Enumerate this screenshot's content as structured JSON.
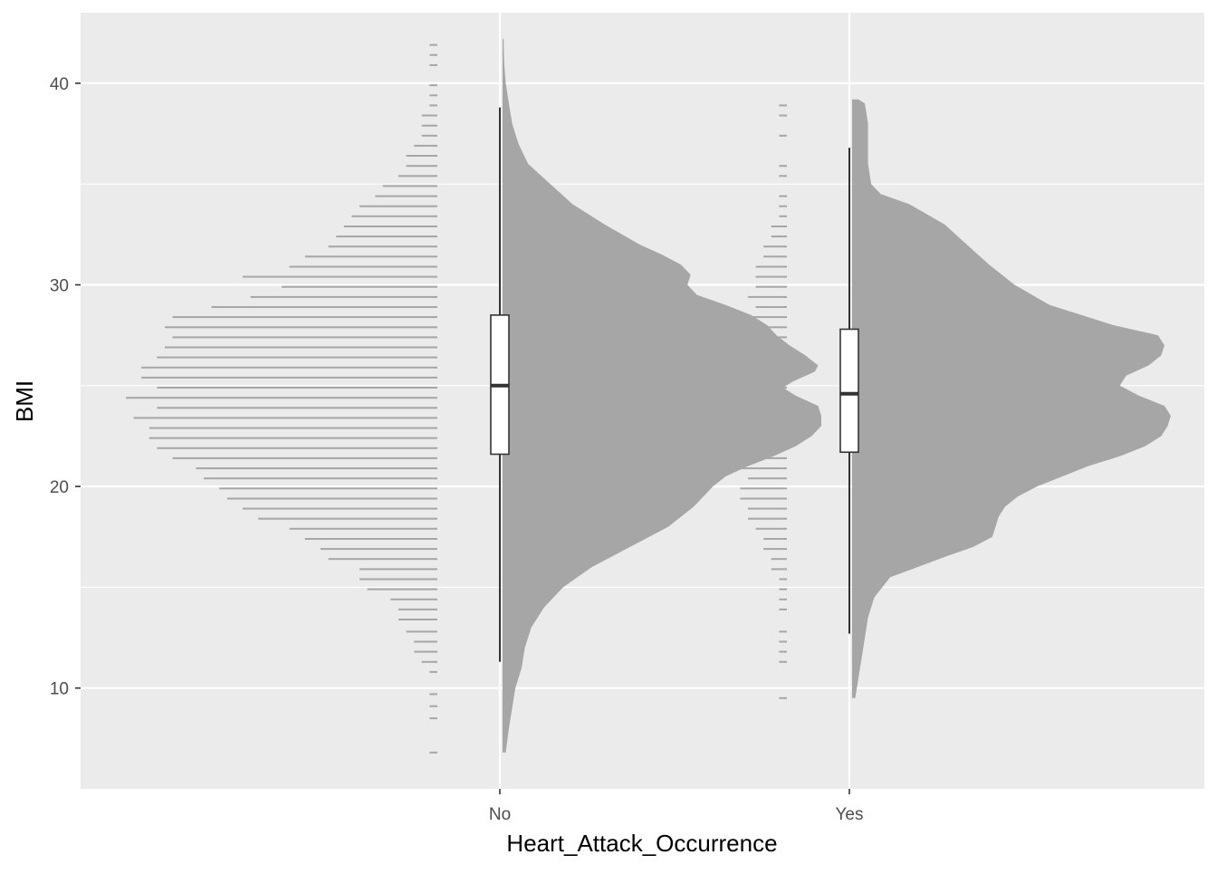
{
  "chart_data": {
    "type": "raincloud",
    "title": "",
    "xlabel": "Heart_Attack_Occurrence",
    "ylabel": "BMI",
    "categories": [
      "No",
      "Yes"
    ],
    "ylim": [
      5,
      43.5
    ],
    "yticks": [
      10,
      20,
      30,
      40
    ],
    "grid": true,
    "colors": {
      "panel": "#ebebeb",
      "grid": "#ffffff",
      "cloud": "#a6a6a6",
      "rain": "#a6a6a6",
      "box_fill": "#ffffff",
      "box_line": "#333333",
      "tick_text": "#4d4d4d",
      "axis_title": "#000000"
    },
    "series": [
      {
        "name": "No",
        "boxplot": {
          "lower_whisker": 11.3,
          "q1": 21.6,
          "median": 25.0,
          "q3": 28.5,
          "upper_whisker": 38.8
        },
        "density": [
          [
            6.8,
            0.01
          ],
          [
            8.0,
            0.02
          ],
          [
            9.0,
            0.03
          ],
          [
            10.0,
            0.04
          ],
          [
            11.0,
            0.06
          ],
          [
            12.0,
            0.07
          ],
          [
            13.0,
            0.09
          ],
          [
            14.0,
            0.13
          ],
          [
            15.0,
            0.19
          ],
          [
            16.0,
            0.28
          ],
          [
            17.0,
            0.4
          ],
          [
            18.0,
            0.52
          ],
          [
            19.0,
            0.6
          ],
          [
            19.5,
            0.63
          ],
          [
            20.0,
            0.66
          ],
          [
            20.5,
            0.7
          ],
          [
            21.0,
            0.77
          ],
          [
            21.5,
            0.85
          ],
          [
            22.0,
            0.92
          ],
          [
            22.5,
            0.97
          ],
          [
            23.0,
            1.0
          ],
          [
            23.5,
            1.0
          ],
          [
            24.0,
            0.99
          ],
          [
            24.5,
            0.92
          ],
          [
            24.9,
            0.88
          ],
          [
            25.2,
            0.91
          ],
          [
            25.7,
            0.98
          ],
          [
            26.0,
            0.99
          ],
          [
            26.5,
            0.95
          ],
          [
            27.0,
            0.9
          ],
          [
            27.5,
            0.86
          ],
          [
            28.0,
            0.83
          ],
          [
            28.5,
            0.78
          ],
          [
            29.0,
            0.7
          ],
          [
            29.5,
            0.61
          ],
          [
            30.0,
            0.58
          ],
          [
            30.5,
            0.59
          ],
          [
            31.0,
            0.56
          ],
          [
            31.5,
            0.5
          ],
          [
            32.0,
            0.43
          ],
          [
            33.0,
            0.32
          ],
          [
            34.0,
            0.22
          ],
          [
            35.0,
            0.15
          ],
          [
            36.0,
            0.08
          ],
          [
            37.0,
            0.05
          ],
          [
            38.0,
            0.03
          ],
          [
            39.0,
            0.02
          ],
          [
            40.0,
            0.01
          ],
          [
            41.0,
            0.005
          ],
          [
            42.2,
            0.003
          ]
        ],
        "dots": [
          [
            6.8,
            1
          ],
          [
            8.5,
            1
          ],
          [
            9.1,
            1
          ],
          [
            9.7,
            1
          ],
          [
            10.8,
            1
          ],
          [
            11.3,
            2
          ],
          [
            11.8,
            3
          ],
          [
            12.3,
            3
          ],
          [
            12.8,
            4
          ],
          [
            13.4,
            5
          ],
          [
            13.9,
            5
          ],
          [
            14.4,
            6
          ],
          [
            14.9,
            9
          ],
          [
            15.4,
            10
          ],
          [
            15.9,
            10
          ],
          [
            16.4,
            14
          ],
          [
            16.9,
            15
          ],
          [
            17.4,
            17
          ],
          [
            17.9,
            19
          ],
          [
            18.4,
            23
          ],
          [
            18.9,
            25
          ],
          [
            19.4,
            27
          ],
          [
            19.9,
            28
          ],
          [
            20.4,
            30
          ],
          [
            20.9,
            31
          ],
          [
            21.4,
            34
          ],
          [
            21.9,
            36
          ],
          [
            22.4,
            37
          ],
          [
            22.9,
            37
          ],
          [
            23.4,
            39
          ],
          [
            23.9,
            36
          ],
          [
            24.4,
            40
          ],
          [
            24.9,
            36
          ],
          [
            25.4,
            38
          ],
          [
            25.9,
            38
          ],
          [
            26.4,
            36
          ],
          [
            26.9,
            35
          ],
          [
            27.4,
            34
          ],
          [
            27.9,
            35
          ],
          [
            28.4,
            34
          ],
          [
            28.9,
            29
          ],
          [
            29.4,
            24
          ],
          [
            29.9,
            20
          ],
          [
            30.4,
            25
          ],
          [
            30.9,
            19
          ],
          [
            31.4,
            17
          ],
          [
            31.9,
            14
          ],
          [
            32.4,
            13
          ],
          [
            32.9,
            12
          ],
          [
            33.4,
            11
          ],
          [
            33.9,
            10
          ],
          [
            34.4,
            8
          ],
          [
            34.9,
            7
          ],
          [
            35.4,
            5
          ],
          [
            35.9,
            4
          ],
          [
            36.4,
            4
          ],
          [
            36.9,
            3
          ],
          [
            37.4,
            2
          ],
          [
            37.9,
            2
          ],
          [
            38.4,
            2
          ],
          [
            38.9,
            1
          ],
          [
            39.4,
            1
          ],
          [
            39.9,
            1
          ],
          [
            40.9,
            1
          ],
          [
            41.4,
            1
          ],
          [
            41.9,
            1
          ]
        ]
      },
      {
        "name": "Yes",
        "boxplot": {
          "lower_whisker": 12.7,
          "q1": 21.7,
          "median": 24.6,
          "q3": 27.8,
          "upper_whisker": 36.8
        },
        "density": [
          [
            9.5,
            0.01
          ],
          [
            10.5,
            0.02
          ],
          [
            11.5,
            0.03
          ],
          [
            12.5,
            0.04
          ],
          [
            13.5,
            0.05
          ],
          [
            14.5,
            0.07
          ],
          [
            15.5,
            0.12
          ],
          [
            16.5,
            0.29
          ],
          [
            17.0,
            0.38
          ],
          [
            17.5,
            0.44
          ],
          [
            18.0,
            0.45
          ],
          [
            18.5,
            0.46
          ],
          [
            19.0,
            0.48
          ],
          [
            19.5,
            0.52
          ],
          [
            20.0,
            0.58
          ],
          [
            20.5,
            0.66
          ],
          [
            21.0,
            0.74
          ],
          [
            21.5,
            0.84
          ],
          [
            22.0,
            0.92
          ],
          [
            22.5,
            0.97
          ],
          [
            23.0,
            0.99
          ],
          [
            23.5,
            1.0
          ],
          [
            24.0,
            0.98
          ],
          [
            24.5,
            0.9
          ],
          [
            25.0,
            0.84
          ],
          [
            25.5,
            0.86
          ],
          [
            26.0,
            0.93
          ],
          [
            26.5,
            0.97
          ],
          [
            27.0,
            0.98
          ],
          [
            27.5,
            0.96
          ],
          [
            28.0,
            0.82
          ],
          [
            29.0,
            0.62
          ],
          [
            30.0,
            0.51
          ],
          [
            31.0,
            0.43
          ],
          [
            32.0,
            0.36
          ],
          [
            33.0,
            0.29
          ],
          [
            34.0,
            0.18
          ],
          [
            34.5,
            0.09
          ],
          [
            35.0,
            0.06
          ],
          [
            36.0,
            0.05
          ],
          [
            37.0,
            0.05
          ],
          [
            38.0,
            0.05
          ],
          [
            39.0,
            0.04
          ],
          [
            39.2,
            0.02
          ]
        ],
        "dots": [
          [
            9.5,
            1
          ],
          [
            11.3,
            1
          ],
          [
            11.8,
            1
          ],
          [
            12.3,
            1
          ],
          [
            12.8,
            1
          ],
          [
            13.9,
            1
          ],
          [
            14.4,
            1
          ],
          [
            14.9,
            1
          ],
          [
            15.4,
            1
          ],
          [
            15.9,
            2
          ],
          [
            16.4,
            2
          ],
          [
            16.9,
            3
          ],
          [
            17.4,
            3
          ],
          [
            17.9,
            4
          ],
          [
            18.4,
            5
          ],
          [
            18.9,
            5
          ],
          [
            19.4,
            6
          ],
          [
            19.9,
            6
          ],
          [
            20.4,
            5
          ],
          [
            20.9,
            6
          ],
          [
            21.4,
            6
          ],
          [
            21.9,
            8
          ],
          [
            22.4,
            7
          ],
          [
            22.9,
            7
          ],
          [
            23.4,
            7
          ],
          [
            23.9,
            6
          ],
          [
            24.4,
            7
          ],
          [
            24.9,
            7
          ],
          [
            25.4,
            7
          ],
          [
            25.9,
            6
          ],
          [
            26.4,
            6
          ],
          [
            26.9,
            5
          ],
          [
            27.4,
            6
          ],
          [
            27.9,
            6
          ],
          [
            28.4,
            6
          ],
          [
            28.9,
            4
          ],
          [
            29.4,
            5
          ],
          [
            29.9,
            4
          ],
          [
            30.4,
            4
          ],
          [
            30.9,
            4
          ],
          [
            31.4,
            3
          ],
          [
            31.9,
            3
          ],
          [
            32.4,
            2
          ],
          [
            32.9,
            2
          ],
          [
            33.4,
            1
          ],
          [
            33.9,
            1
          ],
          [
            34.4,
            1
          ],
          [
            35.4,
            1
          ],
          [
            35.9,
            1
          ],
          [
            37.4,
            1
          ],
          [
            38.4,
            1
          ],
          [
            38.9,
            1
          ]
        ]
      }
    ]
  }
}
